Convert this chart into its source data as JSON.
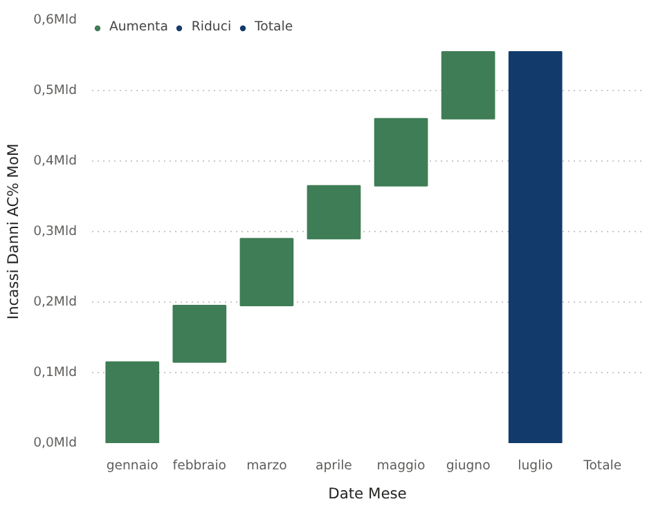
{
  "chart_data": {
    "type": "bar",
    "xlabel": "Date Mese",
    "ylabel": "Incassi Danni AC% MoM",
    "categories": [
      "gennaio",
      "febbraio",
      "marzo",
      "aprile",
      "maggio",
      "giugno",
      "luglio",
      "Totale"
    ],
    "series": [
      {
        "name": "Aumenta",
        "color": "#3f7d56",
        "values": [
          0.115,
          0.08,
          0.095,
          0.075,
          0.095,
          0.095,
          null,
          null
        ],
        "base": [
          0,
          0.115,
          0.195,
          0.29,
          0.365,
          0.46,
          null,
          null
        ]
      },
      {
        "name": "Riduci",
        "color": "#1b3d6b",
        "values": [
          null,
          null,
          null,
          null,
          null,
          null,
          null,
          null
        ]
      },
      {
        "name": "Totale",
        "color": "#123a6b",
        "values": [
          null,
          null,
          null,
          null,
          null,
          null,
          0.555,
          null
        ],
        "base": [
          null,
          null,
          null,
          null,
          null,
          null,
          0,
          null
        ]
      }
    ],
    "ylim": [
      0,
      0.6
    ],
    "yticks": [
      {
        "value": 0,
        "label": "0,0Mld"
      },
      {
        "value": 0.1,
        "label": "0,1Mld"
      },
      {
        "value": 0.2,
        "label": "0,2Mld"
      },
      {
        "value": 0.3,
        "label": "0,3Mld"
      },
      {
        "value": 0.4,
        "label": "0,4Mld"
      },
      {
        "value": 0.5,
        "label": "0,5Mld"
      },
      {
        "value": 0.6,
        "label": "0,6Mld"
      }
    ],
    "grid": "y",
    "legend": "top left"
  }
}
